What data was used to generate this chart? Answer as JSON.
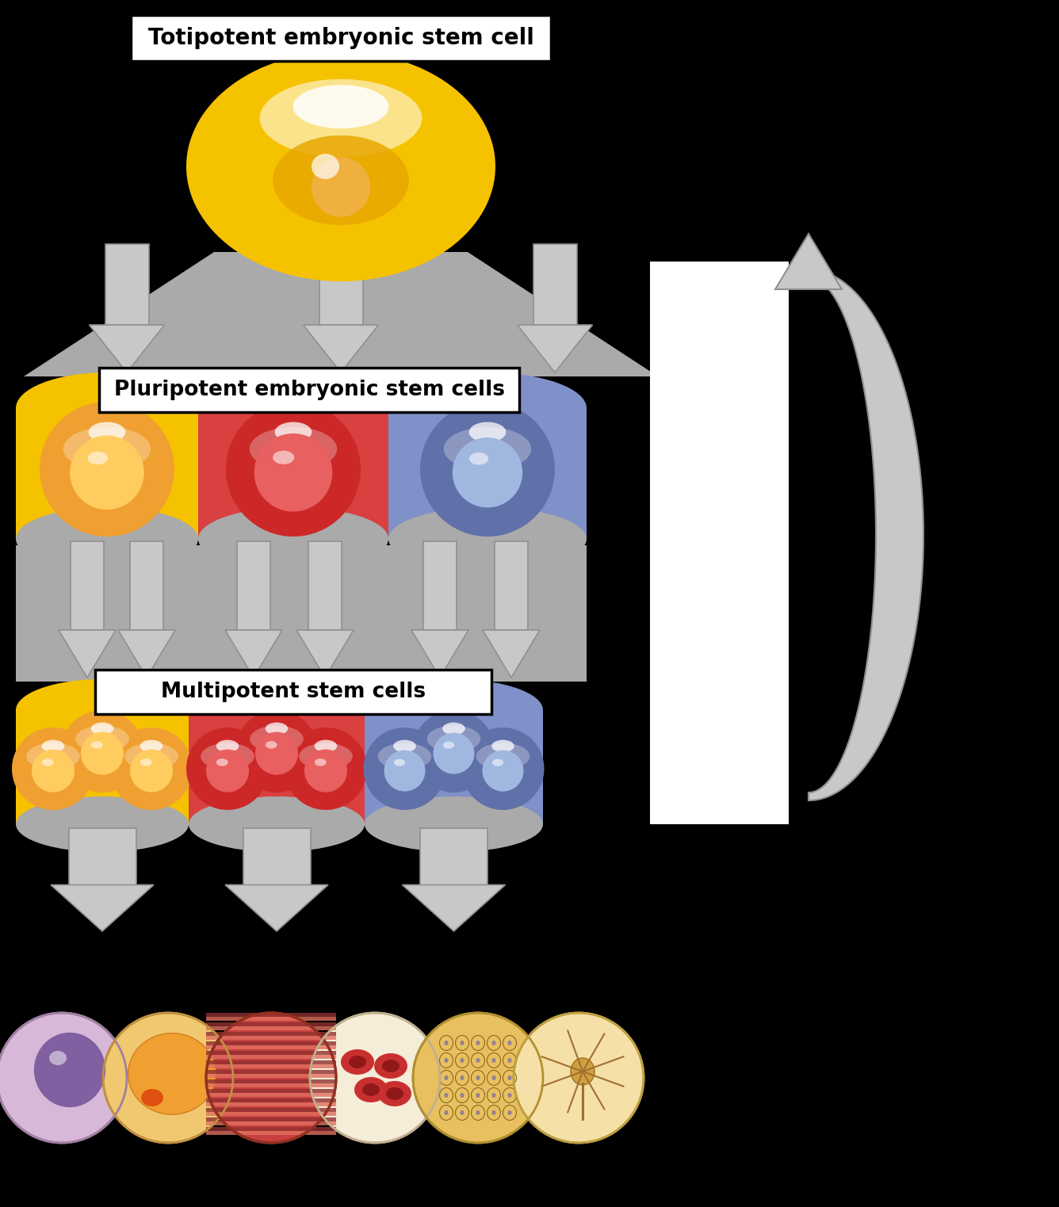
{
  "title1": "Totipotent embryonic stem cell",
  "title2": "Pluripotent embryonic stem cells",
  "title3": "Multipotent stem cells",
  "bg_color": "#ffffff",
  "black_bg": "#000000",
  "yellow": "#F5C200",
  "yellow_dark": "#E8A000",
  "yellow_cell": "#F0A030",
  "red": "#D94040",
  "red_dark": "#C03030",
  "blue": "#8090C8",
  "blue_dark": "#6070A8",
  "blue_cell": "#7080B8",
  "arrow_fill": "#C8C8C8",
  "arrow_edge": "#909090",
  "arrow_dark": "#A0A0A0"
}
